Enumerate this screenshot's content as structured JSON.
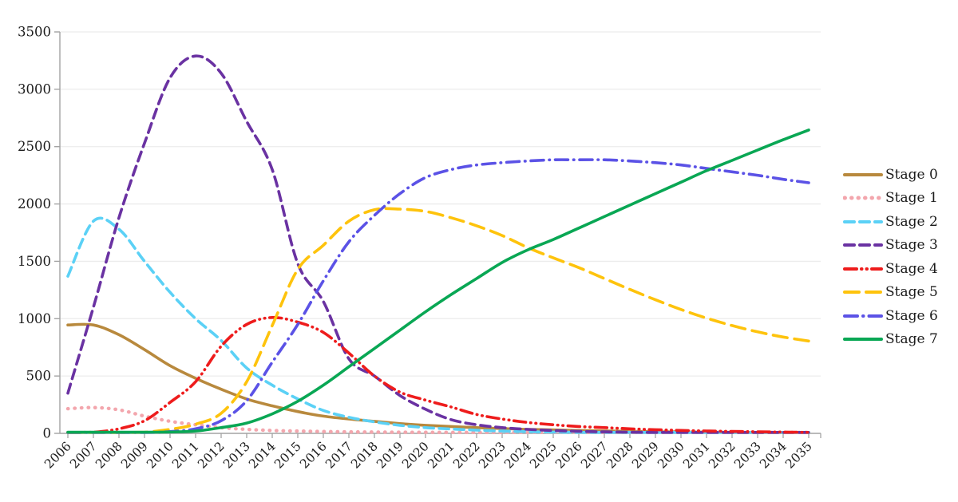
{
  "chart_data": {
    "type": "line",
    "title": "",
    "xlabel": "",
    "ylabel": "",
    "x": [
      2006,
      2007,
      2008,
      2009,
      2010,
      2011,
      2012,
      2013,
      2014,
      2015,
      2016,
      2017,
      2018,
      2019,
      2020,
      2021,
      2022,
      2023,
      2024,
      2025,
      2026,
      2027,
      2028,
      2029,
      2030,
      2031,
      2032,
      2033,
      2034,
      2035
    ],
    "ylim": [
      0,
      3500
    ],
    "ytick_step": 500,
    "grid": "horizontal",
    "legend_position": "right",
    "style": {
      "axis_color": "#a3a3a3",
      "grid_color": "#ececec",
      "text_color": "#1b1b1b",
      "background": "#ffffff"
    },
    "series": [
      {
        "name": "Stage 0",
        "color": "#b8893d",
        "dash": "solid",
        "values": [
          945,
          945,
          860,
          730,
          590,
          480,
          385,
          300,
          240,
          190,
          150,
          125,
          105,
          85,
          70,
          60,
          50,
          42,
          35,
          30,
          25,
          21,
          18,
          15,
          13,
          11,
          9,
          8,
          7,
          6
        ]
      },
      {
        "name": "Stage 1",
        "color": "#f3a6ad",
        "dash": "dot",
        "values": [
          215,
          225,
          205,
          150,
          105,
          75,
          50,
          35,
          25,
          20,
          16,
          13,
          11,
          10,
          9,
          8,
          8,
          8,
          8,
          8,
          8,
          8,
          8,
          8,
          8,
          8,
          8,
          8,
          8,
          8
        ]
      },
      {
        "name": "Stage 2",
        "color": "#5bd1f6",
        "dash": "dash",
        "values": [
          1370,
          1850,
          1780,
          1500,
          1230,
          1000,
          810,
          570,
          420,
          300,
          200,
          140,
          100,
          70,
          50,
          38,
          28,
          20,
          15,
          11,
          8,
          6,
          5,
          4,
          3,
          3,
          2,
          2,
          2,
          2
        ]
      },
      {
        "name": "Stage 3",
        "color": "#6a32a2",
        "dash": "dash",
        "values": [
          350,
          1100,
          1880,
          2530,
          3100,
          3290,
          3140,
          2720,
          2300,
          1480,
          1150,
          650,
          500,
          330,
          210,
          120,
          75,
          50,
          35,
          25,
          18,
          13,
          10,
          8,
          6,
          5,
          4,
          4,
          3,
          3
        ]
      },
      {
        "name": "Stage 4",
        "color": "#ee1c1c",
        "dash": "dash-dot-dot",
        "values": [
          5,
          10,
          40,
          110,
          270,
          450,
          760,
          950,
          1010,
          970,
          880,
          700,
          500,
          360,
          290,
          230,
          165,
          125,
          95,
          75,
          60,
          50,
          40,
          32,
          26,
          21,
          17,
          14,
          11,
          9
        ]
      },
      {
        "name": "Stage 5",
        "color": "#fec30c",
        "dash": "long-dash",
        "values": [
          0,
          0,
          5,
          10,
          35,
          80,
          175,
          450,
          940,
          1430,
          1640,
          1850,
          1950,
          1955,
          1935,
          1880,
          1810,
          1725,
          1620,
          1530,
          1445,
          1350,
          1255,
          1165,
          1080,
          1005,
          940,
          885,
          840,
          805
        ]
      },
      {
        "name": "Stage 6",
        "color": "#5b52e6",
        "dash": "dash-dot",
        "values": [
          0,
          0,
          0,
          5,
          15,
          40,
          110,
          285,
          620,
          950,
          1330,
          1670,
          1900,
          2090,
          2230,
          2300,
          2340,
          2360,
          2375,
          2385,
          2385,
          2385,
          2375,
          2360,
          2340,
          2310,
          2280,
          2250,
          2215,
          2185
        ]
      },
      {
        "name": "Stage 7",
        "color": "#09a754",
        "dash": "solid",
        "values": [
          10,
          10,
          10,
          10,
          12,
          20,
          50,
          90,
          170,
          280,
          420,
          580,
          740,
          900,
          1060,
          1210,
          1350,
          1490,
          1600,
          1690,
          1790,
          1890,
          1990,
          2090,
          2190,
          2290,
          2380,
          2470,
          2560,
          2645
        ]
      }
    ]
  }
}
